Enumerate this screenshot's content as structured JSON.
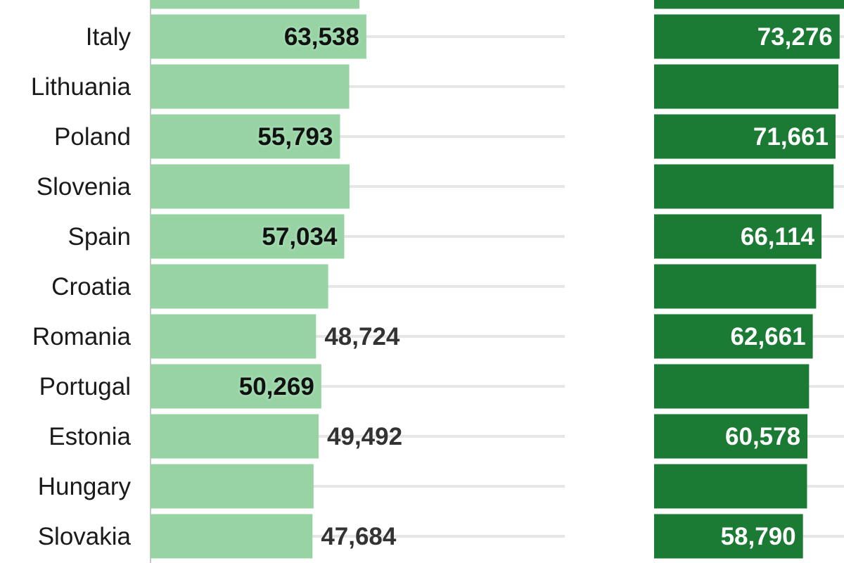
{
  "colors": {
    "light_bar": "#98d3a4",
    "dark_bar": "#1b7a34",
    "grid": "#e6e6e6",
    "axis": "#c8c8c8"
  },
  "chart_data": {
    "type": "bar",
    "orientation": "horizontal",
    "categories": [
      "(cropped)",
      "Italy",
      "Lithuania",
      "Poland",
      "Slovenia",
      "Spain",
      "Croatia",
      "Romania",
      "Portugal",
      "Estonia",
      "Hungary",
      "Slovakia"
    ],
    "category_labels_visible": [
      "",
      "Italy",
      "Lithuania",
      "Poland",
      "Slovenia",
      "Spain",
      "Croatia",
      "Romania",
      "Portugal",
      "Estonia",
      "Hungary",
      "Slovakia"
    ],
    "panels": [
      {
        "color": "#98d3a4",
        "values": [
          61500,
          63538,
          58500,
          55793,
          58600,
          57034,
          52300,
          48724,
          50269,
          49492,
          48000,
          47684
        ],
        "labels": [
          null,
          "63,538",
          null,
          "55,793",
          null,
          "57,034",
          null,
          "48,724",
          "50,269",
          "49,492",
          null,
          "47,684"
        ],
        "label_pos": [
          null,
          "inside",
          null,
          "inside",
          null,
          "inside",
          null,
          "outside",
          "inside",
          "outside",
          null,
          "outside"
        ],
        "xlim": [
          0,
          200000
        ]
      },
      {
        "color": "#1b7a34",
        "values": [
          75000,
          73276,
          72800,
          71661,
          70900,
          66114,
          64000,
          62661,
          61200,
          60578,
          60400,
          58790
        ],
        "labels": [
          null,
          "73,276",
          null,
          "71,661",
          null,
          "66,114",
          null,
          "62,661",
          null,
          "60,578",
          null,
          "58,790"
        ],
        "label_pos": [
          null,
          "inside",
          null,
          "inside",
          null,
          "inside",
          null,
          "inside",
          null,
          "inside",
          null,
          "inside"
        ],
        "xlim": [
          0,
          75000
        ]
      }
    ],
    "grid": true,
    "legend": "none"
  }
}
